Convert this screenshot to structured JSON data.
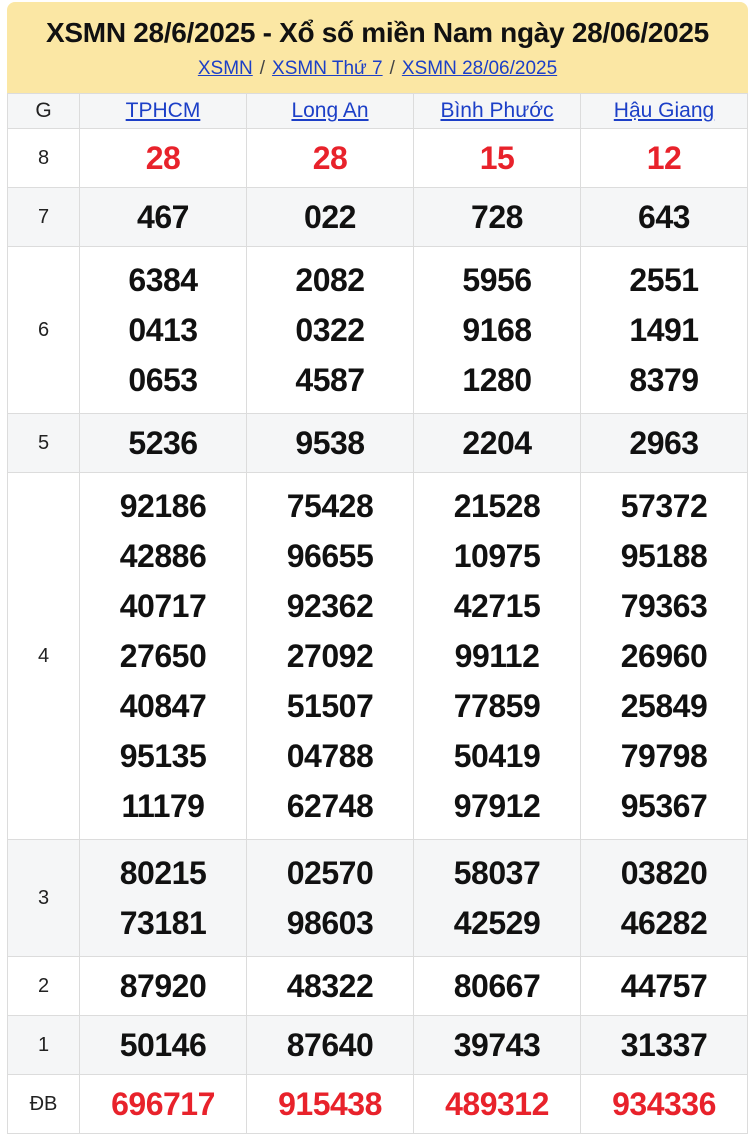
{
  "header": {
    "title": "XSMN 28/6/2025 - Xổ số miền Nam ngày 28/06/2025",
    "breadcrumb": [
      "XSMN",
      "XSMN Thứ 7",
      "XSMN 28/06/2025"
    ],
    "separator": "/"
  },
  "colors": {
    "header_bg": "#fbe7a4",
    "link_blue": "#1c3fc7",
    "highlight_red": "#e8222b",
    "row_alt_bg": "#f5f6f7",
    "border": "#dcdcdc"
  },
  "table": {
    "prize_column_header": "G",
    "columns": [
      "TPHCM",
      "Long An",
      "Bình Phước",
      "Hậu Giang"
    ],
    "rows": [
      {
        "prize": "8",
        "highlight": true,
        "values": [
          [
            "28"
          ],
          [
            "28"
          ],
          [
            "15"
          ],
          [
            "12"
          ]
        ]
      },
      {
        "prize": "7",
        "highlight": false,
        "values": [
          [
            "467"
          ],
          [
            "022"
          ],
          [
            "728"
          ],
          [
            "643"
          ]
        ]
      },
      {
        "prize": "6",
        "highlight": false,
        "values": [
          [
            "6384",
            "0413",
            "0653"
          ],
          [
            "2082",
            "0322",
            "4587"
          ],
          [
            "5956",
            "9168",
            "1280"
          ],
          [
            "2551",
            "1491",
            "8379"
          ]
        ]
      },
      {
        "prize": "5",
        "highlight": false,
        "values": [
          [
            "5236"
          ],
          [
            "9538"
          ],
          [
            "2204"
          ],
          [
            "2963"
          ]
        ]
      },
      {
        "prize": "4",
        "highlight": false,
        "values": [
          [
            "92186",
            "42886",
            "40717",
            "27650",
            "40847",
            "95135",
            "11179"
          ],
          [
            "75428",
            "96655",
            "92362",
            "27092",
            "51507",
            "04788",
            "62748"
          ],
          [
            "21528",
            "10975",
            "42715",
            "99112",
            "77859",
            "50419",
            "97912"
          ],
          [
            "57372",
            "95188",
            "79363",
            "26960",
            "25849",
            "79798",
            "95367"
          ]
        ]
      },
      {
        "prize": "3",
        "highlight": false,
        "values": [
          [
            "80215",
            "73181"
          ],
          [
            "02570",
            "98603"
          ],
          [
            "58037",
            "42529"
          ],
          [
            "03820",
            "46282"
          ]
        ]
      },
      {
        "prize": "2",
        "highlight": false,
        "values": [
          [
            "87920"
          ],
          [
            "48322"
          ],
          [
            "80667"
          ],
          [
            "44757"
          ]
        ]
      },
      {
        "prize": "1",
        "highlight": false,
        "values": [
          [
            "50146"
          ],
          [
            "87640"
          ],
          [
            "39743"
          ],
          [
            "31337"
          ]
        ]
      },
      {
        "prize": "ĐB",
        "highlight": true,
        "values": [
          [
            "696717"
          ],
          [
            "915438"
          ],
          [
            "489312"
          ],
          [
            "934336"
          ]
        ]
      }
    ]
  }
}
